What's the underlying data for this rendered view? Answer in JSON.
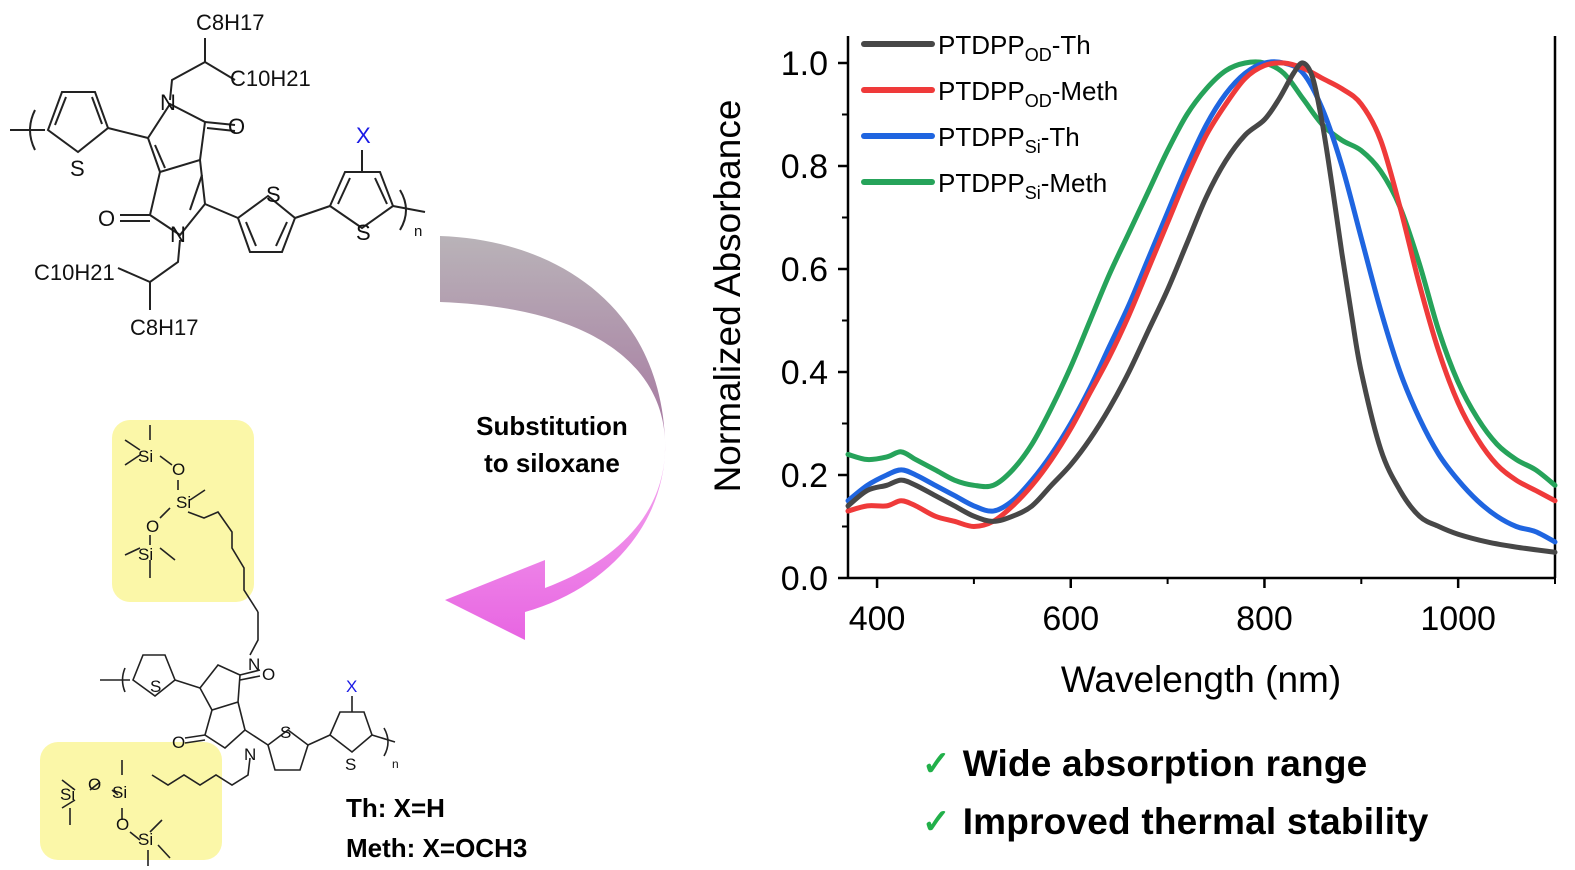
{
  "scheme": {
    "top_polymer": {
      "side_chain_top_branch1": "C8H17",
      "side_chain_top_branch2": "C10H21",
      "side_chain_bottom_branch1": "C10H21",
      "side_chain_bottom_branch2": "C8H17",
      "substituent_label": "X",
      "repeat_label": "n"
    },
    "arrow_label_line1": "Substitution",
    "arrow_label_line2": "to siloxane",
    "bottom_polymer": {
      "siloxane_atoms": [
        "Si",
        "O",
        "Si",
        "O",
        "Si"
      ],
      "substituent_label": "X",
      "repeat_label": "n"
    },
    "definitions": [
      {
        "name": "Th",
        "text": "Th: X=H"
      },
      {
        "name": "Meth",
        "text": "Meth: X=OCH3"
      }
    ],
    "colors": {
      "highlight": "#fbf7a8",
      "arrow_top": "#b9b3b8",
      "arrow_mid": "#a87ea3",
      "arrow_bottom": "#e865e2",
      "substituent": "#1a1ae6"
    }
  },
  "claims": [
    {
      "icon": "check-icon",
      "text": "Wide absorption range"
    },
    {
      "icon": "check-icon",
      "text": "Improved thermal stability"
    }
  ],
  "chart_data": {
    "type": "line",
    "title": "",
    "xlabel": "Wavelength (nm)",
    "ylabel": "Normalized Absorbance",
    "xlim": [
      370,
      1100
    ],
    "ylim": [
      0.0,
      1.05
    ],
    "xticks": [
      400,
      600,
      800,
      1000
    ],
    "xticklabels": [
      "400",
      "600",
      "800",
      "1000"
    ],
    "xminor": [
      500,
      700,
      900,
      1100
    ],
    "yticks": [
      0.0,
      0.2,
      0.4,
      0.6,
      0.8,
      1.0
    ],
    "yticklabels": [
      "0.0",
      "0.2",
      "0.4",
      "0.6",
      "0.8",
      "1.0"
    ],
    "yminor": [
      0.1,
      0.3,
      0.5,
      0.7,
      0.9
    ],
    "grid": false,
    "legend_position": "top-left",
    "series": [
      {
        "name": "PTDPP_OD-Th",
        "label_main": "PTDPP",
        "label_sub": "OD",
        "label_suffix": "-Th",
        "color": "#474747",
        "x": [
          370,
          390,
          410,
          425,
          440,
          460,
          480,
          500,
          520,
          540,
          560,
          580,
          600,
          620,
          640,
          660,
          680,
          700,
          720,
          740,
          760,
          780,
          800,
          815,
          830,
          840,
          850,
          860,
          870,
          880,
          890,
          900,
          920,
          940,
          960,
          980,
          1000,
          1030,
          1060,
          1100
        ],
        "y": [
          0.14,
          0.17,
          0.18,
          0.19,
          0.18,
          0.16,
          0.14,
          0.12,
          0.11,
          0.12,
          0.14,
          0.18,
          0.22,
          0.27,
          0.33,
          0.4,
          0.48,
          0.56,
          0.65,
          0.74,
          0.81,
          0.86,
          0.89,
          0.93,
          0.98,
          1.0,
          0.97,
          0.88,
          0.76,
          0.63,
          0.51,
          0.4,
          0.25,
          0.17,
          0.12,
          0.1,
          0.085,
          0.07,
          0.06,
          0.05
        ]
      },
      {
        "name": "PTDPP_OD-Meth",
        "label_main": "PTDPP",
        "label_sub": "OD",
        "label_suffix": "-Meth",
        "color": "#ef3a3a",
        "x": [
          370,
          390,
          410,
          425,
          440,
          460,
          480,
          500,
          520,
          540,
          560,
          580,
          600,
          620,
          640,
          660,
          680,
          700,
          720,
          740,
          760,
          780,
          800,
          820,
          840,
          860,
          880,
          900,
          920,
          940,
          960,
          980,
          1000,
          1020,
          1040,
          1060,
          1080,
          1100
        ],
        "y": [
          0.13,
          0.14,
          0.14,
          0.15,
          0.14,
          0.12,
          0.11,
          0.1,
          0.11,
          0.14,
          0.18,
          0.23,
          0.29,
          0.36,
          0.43,
          0.51,
          0.6,
          0.69,
          0.78,
          0.86,
          0.92,
          0.97,
          0.995,
          1.0,
          0.99,
          0.97,
          0.95,
          0.92,
          0.85,
          0.72,
          0.57,
          0.44,
          0.34,
          0.27,
          0.22,
          0.19,
          0.17,
          0.15
        ]
      },
      {
        "name": "PTDPP_Si-Th",
        "label_main": "PTDPP",
        "label_sub": "Si",
        "label_suffix": "-Th",
        "color": "#1f65e0",
        "x": [
          370,
          390,
          410,
          425,
          440,
          460,
          480,
          500,
          520,
          540,
          560,
          580,
          600,
          620,
          640,
          660,
          680,
          700,
          720,
          740,
          760,
          780,
          800,
          820,
          840,
          860,
          880,
          900,
          920,
          940,
          960,
          980,
          1000,
          1020,
          1040,
          1060,
          1080,
          1100
        ],
        "y": [
          0.15,
          0.18,
          0.2,
          0.21,
          0.2,
          0.18,
          0.16,
          0.14,
          0.13,
          0.15,
          0.19,
          0.24,
          0.3,
          0.37,
          0.45,
          0.53,
          0.62,
          0.71,
          0.8,
          0.88,
          0.94,
          0.98,
          1.0,
          1.0,
          0.98,
          0.91,
          0.8,
          0.66,
          0.52,
          0.4,
          0.31,
          0.24,
          0.19,
          0.15,
          0.12,
          0.1,
          0.09,
          0.07
        ]
      },
      {
        "name": "PTDPP_Si-Meth",
        "label_main": "PTDPP",
        "label_sub": "Si",
        "label_suffix": "-Meth",
        "color": "#26a35a",
        "x": [
          370,
          390,
          410,
          425,
          440,
          460,
          480,
          500,
          520,
          540,
          560,
          580,
          600,
          620,
          640,
          660,
          680,
          700,
          720,
          740,
          760,
          780,
          800,
          820,
          840,
          860,
          880,
          900,
          920,
          940,
          960,
          980,
          1000,
          1020,
          1040,
          1060,
          1080,
          1100
        ],
        "y": [
          0.24,
          0.23,
          0.235,
          0.245,
          0.23,
          0.21,
          0.19,
          0.18,
          0.18,
          0.21,
          0.26,
          0.33,
          0.41,
          0.5,
          0.59,
          0.67,
          0.75,
          0.83,
          0.9,
          0.95,
          0.985,
          1.0,
          1.0,
          0.98,
          0.93,
          0.88,
          0.85,
          0.83,
          0.79,
          0.72,
          0.61,
          0.48,
          0.38,
          0.31,
          0.26,
          0.23,
          0.21,
          0.18
        ]
      }
    ]
  }
}
